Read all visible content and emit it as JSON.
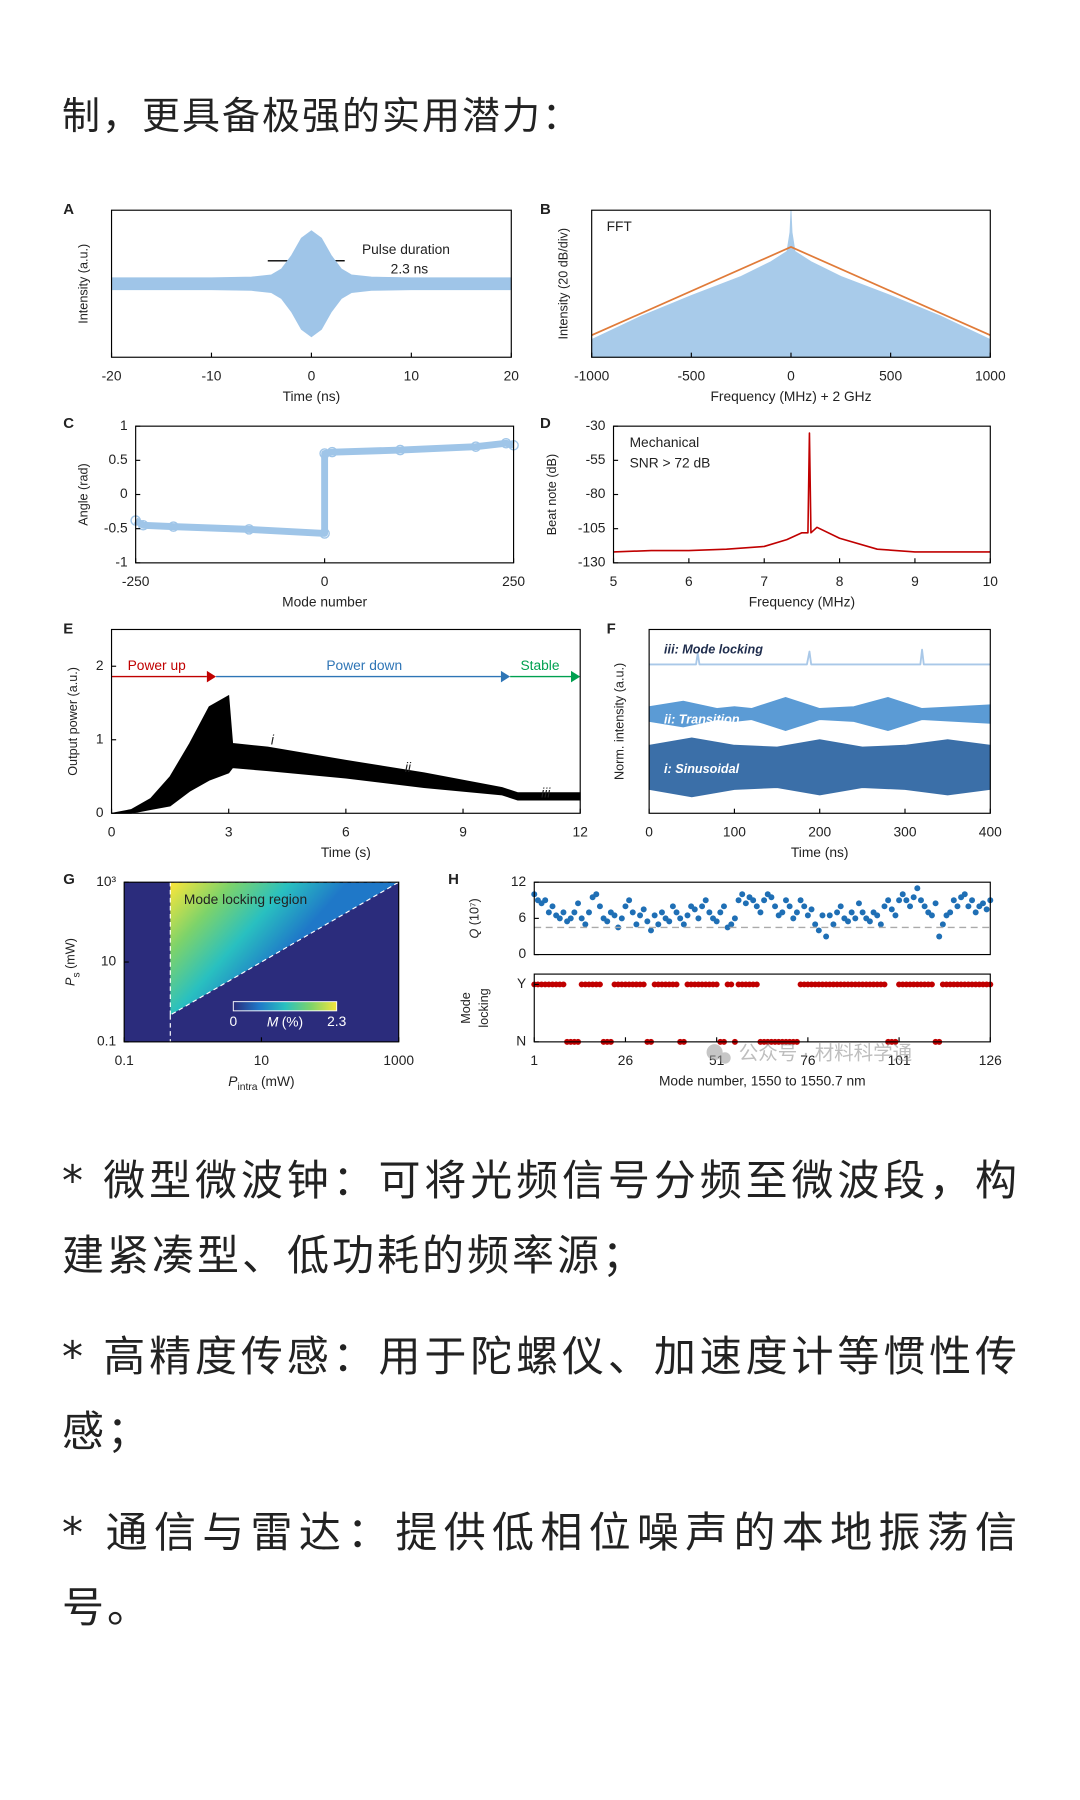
{
  "lead_text": "制，更具备极强的实用潜力：",
  "chart_data": [
    {
      "panel": "A",
      "type": "area",
      "xlim": [
        -20,
        20
      ],
      "xticks": [
        -20,
        -10,
        0,
        10,
        20
      ],
      "ylim": [
        -1,
        1
      ],
      "xlabel": "Time (ns)",
      "ylabel": "Intensity (a.u.)",
      "annotations": {
        "label": "Pulse duration",
        "value": "2.3 ns"
      },
      "series": [
        {
          "color": "#9fc5e8",
          "x": [
            -20,
            -10,
            -6,
            -4,
            -3,
            -2,
            -1,
            0,
            1,
            2,
            3,
            4,
            6,
            10,
            20
          ],
          "values": [
            0.08,
            0.08,
            0.09,
            0.12,
            0.2,
            0.38,
            0.62,
            0.72,
            0.62,
            0.38,
            0.2,
            0.12,
            0.09,
            0.08,
            0.08
          ],
          "lower": [
            -0.08,
            -0.08,
            -0.09,
            -0.12,
            -0.2,
            -0.38,
            -0.62,
            -0.72,
            -0.62,
            -0.38,
            -0.2,
            -0.12,
            -0.09,
            -0.08,
            -0.08
          ]
        }
      ]
    },
    {
      "panel": "B",
      "type": "line",
      "xlim": [
        -1000,
        1000
      ],
      "xticks": [
        -1000,
        -500,
        0,
        500,
        1000
      ],
      "ylim": [
        0,
        1
      ],
      "xlabel": "Frequency (MHz) + 2 GHz",
      "ylabel": "Intensity (20 dB/div)",
      "annotations": {
        "method": "FFT"
      },
      "series": [
        {
          "type": "area",
          "color": "#a8cbea",
          "x": [
            -1000,
            -750,
            -500,
            -250,
            -100,
            -20,
            -5,
            0,
            5,
            20,
            100,
            250,
            500,
            750,
            1000
          ],
          "values": [
            0.12,
            0.28,
            0.42,
            0.55,
            0.65,
            0.72,
            0.85,
            1,
            0.85,
            0.72,
            0.65,
            0.55,
            0.42,
            0.28,
            0.12
          ]
        },
        {
          "type": "line",
          "color": "#e07b39",
          "x": [
            -1000,
            0,
            1000
          ],
          "values": [
            0.15,
            0.75,
            0.15
          ]
        }
      ]
    },
    {
      "panel": "C",
      "type": "line",
      "markers": true,
      "xlim": [
        -250,
        250
      ],
      "xticks": [
        -250,
        0,
        250
      ],
      "ylim": [
        -1,
        1
      ],
      "yticks": [
        -1,
        -0.5,
        0,
        0.5,
        1
      ],
      "xlabel": "Mode number",
      "ylabel": "Angle (rad)",
      "series": [
        {
          "color": "#9fc5e8",
          "x": [
            -250,
            -240,
            -200,
            -100,
            0,
            0,
            10,
            100,
            200,
            240,
            250
          ],
          "values": [
            -0.38,
            -0.45,
            -0.47,
            -0.51,
            -0.57,
            0.6,
            0.62,
            0.65,
            0.7,
            0.75,
            0.72
          ]
        }
      ]
    },
    {
      "panel": "D",
      "type": "line",
      "xlim": [
        5,
        10
      ],
      "xticks": [
        5,
        6,
        7,
        8,
        9,
        10
      ],
      "ylim": [
        -130,
        -30
      ],
      "yticks": [
        -130,
        -105,
        -80,
        -55,
        -30
      ],
      "xlabel": "Frequency (MHz)",
      "ylabel": "Beat note (dB)",
      "annotations": {
        "kind": "Mechanical",
        "snr": "SNR > 72 dB"
      },
      "series": [
        {
          "color": "#c00000",
          "x": [
            5,
            5.5,
            6,
            6.5,
            7,
            7.3,
            7.5,
            7.58,
            7.6,
            7.62,
            7.7,
            8,
            8.5,
            9,
            9.5,
            10
          ],
          "values": [
            -122,
            -121,
            -121,
            -120,
            -118,
            -113,
            -108,
            -108,
            -35,
            -108,
            -104,
            -112,
            -120,
            -122,
            -122,
            -122
          ]
        }
      ]
    },
    {
      "panel": "E",
      "type": "area",
      "xlim": [
        0,
        12
      ],
      "xticks": [
        0,
        3,
        6,
        9,
        12
      ],
      "ylim": [
        0,
        2.5
      ],
      "yticks": [
        0,
        1,
        2
      ],
      "xlabel": "Time (s)",
      "ylabel": "Output power (a.u.)",
      "annotations": {
        "power_up": "Power up",
        "power_down": "Power down",
        "stable": "Stable",
        "trace_i": "i",
        "trace_ii": "ii",
        "trace_iii": "iii"
      },
      "annotation_colors": {
        "power_up": "#c00000",
        "power_down": "#2e75b6",
        "stable": "#00a050"
      },
      "series": [
        {
          "color": "#000000",
          "x": [
            0,
            0.5,
            1,
            1.5,
            2,
            2.5,
            3,
            3.1,
            4,
            6,
            8,
            10,
            10.4,
            12
          ],
          "values": [
            0,
            0.05,
            0.2,
            0.5,
            0.95,
            1.45,
            1.6,
            0.95,
            0.9,
            0.72,
            0.55,
            0.35,
            0.28,
            0.28
          ],
          "lower": [
            0,
            0,
            0.05,
            0.1,
            0.3,
            0.45,
            0.55,
            0.62,
            0.58,
            0.48,
            0.35,
            0.25,
            0.18,
            0.18
          ]
        }
      ]
    },
    {
      "panel": "F",
      "type": "area",
      "xlim": [
        0,
        400
      ],
      "xticks": [
        0,
        100,
        200,
        300,
        400
      ],
      "ylim": [
        0,
        1
      ],
      "xlabel": "Time (ns)",
      "ylabel": "Norm. intensity (a.u.)",
      "series": [
        {
          "name": "i: Sinusoidal",
          "color": "#3b6fa8",
          "x": [
            0,
            50,
            100,
            150,
            200,
            250,
            300,
            350,
            400
          ],
          "values": [
            0.37,
            0.41,
            0.37,
            0.36,
            0.4,
            0.36,
            0.37,
            0.4,
            0.37
          ],
          "lower": [
            0.13,
            0.09,
            0.13,
            0.14,
            0.1,
            0.14,
            0.13,
            0.1,
            0.13
          ]
        },
        {
          "name": "ii: Transition",
          "color": "#5b9bd5",
          "x": [
            0,
            40,
            80,
            100,
            120,
            160,
            200,
            240,
            280,
            320,
            360,
            400
          ],
          "values": [
            0.58,
            0.61,
            0.57,
            0.58,
            0.57,
            0.63,
            0.57,
            0.58,
            0.63,
            0.57,
            0.58,
            0.59
          ],
          "lower": [
            0.5,
            0.47,
            0.51,
            0.5,
            0.51,
            0.45,
            0.51,
            0.5,
            0.45,
            0.51,
            0.5,
            0.49
          ]
        },
        {
          "name": "iii: Mode locking",
          "type": "line",
          "color": "#a9c8e8",
          "x": [
            0,
            55,
            57,
            59,
            185,
            188,
            190,
            318,
            320,
            322,
            400
          ],
          "values": [
            0.81,
            0.81,
            0.87,
            0.81,
            0.81,
            0.88,
            0.81,
            0.81,
            0.89,
            0.81,
            0.81
          ]
        }
      ]
    },
    {
      "panel": "G",
      "type": "heatmap",
      "xscale": "log",
      "yscale": "log",
      "xlim": [
        0.1,
        1000
      ],
      "ylim": [
        0.1,
        1000
      ],
      "xticks": [
        0.1,
        10,
        1000
      ],
      "yticks": [
        0.1,
        10,
        {
          "value": 1000,
          "label": "10³"
        }
      ],
      "xlabel": {
        "symbol": "P",
        "subscript": "intra",
        "unit": "(mW)"
      },
      "ylabel": {
        "symbol": "P",
        "subscript": "s",
        "unit": "(mW)"
      },
      "annotations": {
        "region": "Mode locking region"
      },
      "region": {
        "x": [
          0.47,
          0.47,
          1000
        ],
        "y": [
          0.47,
          1000,
          1000
        ]
      },
      "clim": [
        0,
        2.3
      ],
      "colorbar_label": {
        "symbol": "M",
        "unit": "(%)"
      },
      "colormap": [
        "#2b2c7c",
        "#1f78c8",
        "#29c0c0",
        "#7dd36a",
        "#f5e53c"
      ]
    },
    {
      "panel": "H",
      "type": "scatter",
      "xlim": [
        1,
        126
      ],
      "ylim": [
        0,
        12
      ],
      "yticks": [
        0,
        6,
        12
      ],
      "reference_line": 4.5,
      "ylabel": {
        "symbol": "Q",
        "unit": "(10⁷)"
      },
      "series": [
        {
          "color": "#1f6fb5",
          "x": [
            1,
            2,
            3,
            4,
            5,
            6,
            7,
            8,
            9,
            10,
            11,
            12,
            13,
            14,
            15,
            16,
            17,
            18,
            19,
            20,
            21,
            22,
            23,
            24,
            25,
            26,
            27,
            28,
            29,
            30,
            31,
            32,
            33,
            34,
            35,
            36,
            37,
            38,
            39,
            40,
            41,
            42,
            43,
            44,
            45,
            46,
            47,
            48,
            49,
            50,
            51,
            52,
            53,
            54,
            55,
            56,
            57,
            58,
            59,
            60,
            61,
            62,
            63,
            64,
            65,
            66,
            67,
            68,
            69,
            70,
            71,
            72,
            73,
            74,
            75,
            76,
            77,
            78,
            79,
            80,
            81,
            82,
            83,
            84,
            85,
            86,
            87,
            88,
            89,
            90,
            91,
            92,
            93,
            94,
            95,
            96,
            97,
            98,
            99,
            100,
            101,
            102,
            103,
            104,
            105,
            106,
            107,
            108,
            109,
            110,
            111,
            112,
            113,
            114,
            115,
            116,
            117,
            118,
            119,
            120,
            121,
            122,
            123,
            124,
            125,
            126
          ],
          "values": [
            10,
            9,
            8.5,
            9,
            7,
            8,
            6.5,
            6,
            7,
            5.5,
            6,
            7,
            8.5,
            6,
            5,
            7,
            9.5,
            10,
            8,
            6,
            5.5,
            7,
            6.5,
            4.5,
            6,
            8,
            9,
            7,
            5,
            6.5,
            7.5,
            5.5,
            4,
            6.5,
            5,
            7,
            6,
            5.5,
            8,
            7,
            6,
            5,
            6.5,
            8,
            7.5,
            6,
            8,
            9,
            7,
            6,
            5.5,
            7,
            8,
            4.5,
            5,
            6,
            9,
            10,
            8.5,
            9.5,
            9,
            8,
            7,
            9,
            10,
            9.5,
            8,
            6.5,
            7,
            9,
            8,
            6,
            7,
            9,
            8,
            6.5,
            7.5,
            5,
            4,
            6.5,
            3,
            6.5,
            5,
            7,
            8,
            6,
            5.5,
            7,
            6,
            8.5,
            7,
            6,
            5.5,
            7,
            6.5,
            5,
            8,
            9,
            7.5,
            6.5,
            9,
            10,
            9,
            8,
            9.5,
            11,
            9,
            8,
            7,
            6.5,
            8.5,
            3,
            5,
            6.5,
            7,
            9,
            8,
            9.5,
            10,
            8,
            9,
            7,
            8,
            8.5,
            7.5,
            9
          ]
        }
      ]
    },
    {
      "type": "scatter",
      "xlim": [
        1,
        126
      ],
      "xticks": [
        1,
        26,
        51,
        76,
        101,
        126
      ],
      "ylim": [
        0,
        1.18
      ],
      "yticks": [
        {
          "value": 1,
          "label": "Y"
        },
        {
          "value": 0,
          "label": "N"
        }
      ],
      "xlabel": "Mode number, 1550 to 1550.7 nm",
      "ylabel": [
        "Mode",
        "locking"
      ],
      "series": [
        {
          "color": "#c00000",
          "x": [
            1,
            2,
            3,
            4,
            5,
            6,
            7,
            8,
            9,
            10,
            11,
            12,
            13,
            14,
            15,
            16,
            17,
            18,
            19,
            20,
            21,
            22,
            23,
            24,
            25,
            26,
            27,
            28,
            29,
            30,
            31,
            32,
            33,
            34,
            35,
            36,
            37,
            38,
            39,
            40,
            41,
            42,
            43,
            44,
            45,
            46,
            47,
            48,
            49,
            50,
            51,
            52,
            53,
            54,
            55,
            56,
            57,
            58,
            59,
            60,
            61,
            62,
            63,
            64,
            65,
            66,
            67,
            68,
            69,
            70,
            71,
            72,
            73,
            74,
            75,
            76,
            77,
            78,
            79,
            80,
            81,
            82,
            83,
            84,
            85,
            86,
            87,
            88,
            89,
            90,
            91,
            92,
            93,
            94,
            95,
            96,
            97,
            98,
            99,
            100,
            101,
            102,
            103,
            104,
            105,
            106,
            107,
            108,
            109,
            110,
            111,
            112,
            113,
            114,
            115,
            116,
            117,
            118,
            119,
            120,
            121,
            122,
            123,
            124,
            125,
            126
          ],
          "values": [
            1,
            1,
            1,
            1,
            1,
            1,
            1,
            1,
            1,
            0,
            0,
            0,
            0,
            1,
            1,
            1,
            1,
            1,
            1,
            0,
            0,
            0,
            1,
            1,
            1,
            1,
            1,
            1,
            1,
            1,
            1,
            0,
            0,
            1,
            1,
            1,
            1,
            1,
            1,
            1,
            0,
            0,
            1,
            1,
            1,
            1,
            1,
            1,
            1,
            1,
            1,
            0,
            0,
            1,
            1,
            0,
            1,
            1,
            1,
            1,
            1,
            1,
            0,
            0,
            0,
            0,
            0,
            0,
            0,
            0,
            0,
            0,
            0,
            1,
            1,
            1,
            1,
            1,
            1,
            1,
            1,
            1,
            1,
            1,
            1,
            1,
            1,
            1,
            1,
            1,
            1,
            1,
            1,
            1,
            1,
            1,
            1,
            0,
            0,
            0,
            1,
            1,
            1,
            1,
            1,
            1,
            1,
            1,
            1,
            1,
            0,
            0,
            1,
            1,
            1,
            1,
            1,
            1,
            1,
            1,
            1,
            1,
            1,
            1,
            1,
            1
          ]
        }
      ]
    }
  ],
  "watermark": "公众号 · 材料科学通",
  "paragraphs": [
    "* 微型微波钟：可将光频信号分频至微波段，构建紧凑型、低功耗的频率源；",
    "* 高精度传感：用于陀螺仪、加速度计等惯性传感；",
    "* 通信与雷达：提供低相位噪声的本地振荡信号。"
  ]
}
